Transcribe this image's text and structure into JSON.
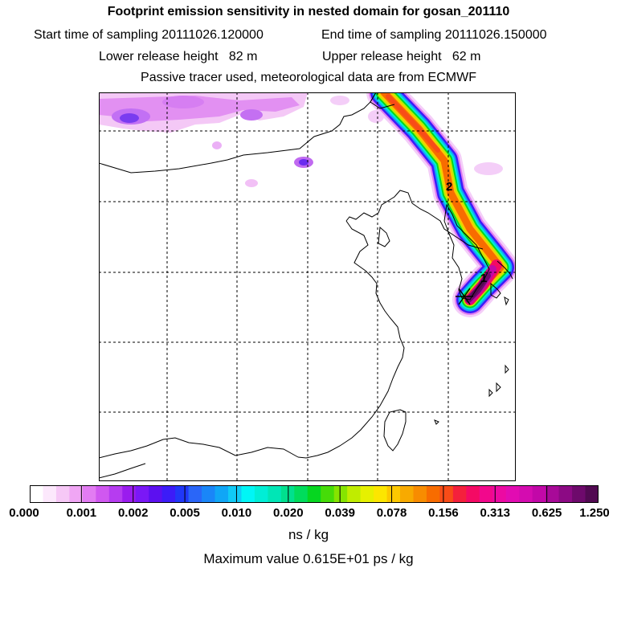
{
  "title": "Footprint emission sensitivity in nested domain for gosan_201110",
  "sampling": {
    "start_label": "Start time of sampling",
    "start_value": "20111026.120000",
    "end_label": "End time of sampling",
    "end_value": "20111026.150000"
  },
  "release": {
    "lower_label": "Lower release height",
    "lower_value": "82 m",
    "upper_label": "Upper release height",
    "upper_value": "62 m"
  },
  "note": "Passive tracer used, meteorological data are from ECMWF",
  "map": {
    "markers": [
      "1",
      "2"
    ],
    "release_site": "gosan"
  },
  "colorbar": {
    "ticks": [
      "0.000",
      "0.001",
      "0.002",
      "0.005",
      "0.010",
      "0.020",
      "0.039",
      "0.078",
      "0.156",
      "0.313",
      "0.625",
      "1.250"
    ],
    "colors": [
      "#ffffff",
      "#fce8fc",
      "#f6c8f6",
      "#f0a6f4",
      "#e27cf2",
      "#d058f0",
      "#b63cf0",
      "#9a1cee",
      "#7a18f6",
      "#5c10f0",
      "#3c1cf8",
      "#2038f8",
      "#2a66f8",
      "#1a86f8",
      "#10a6f6",
      "#10caf6",
      "#00f6f6",
      "#00eed6",
      "#00e6b6",
      "#00e08e",
      "#00dc5c",
      "#06d620",
      "#46dc08",
      "#86e400",
      "#c0ec00",
      "#e6f000",
      "#fce600",
      "#fcc800",
      "#f8aa00",
      "#f88c00",
      "#f86c00",
      "#f84c18",
      "#f4203c",
      "#f40a64",
      "#f2088c",
      "#ec0aa2",
      "#e20cb2",
      "#d40cb0",
      "#c208a8",
      "#a80a98",
      "#8c0a84",
      "#6e0a6c",
      "#520a52"
    ],
    "units": "ns / kg"
  },
  "maximum": "Maximum value  0.615E+01 ps / kg"
}
